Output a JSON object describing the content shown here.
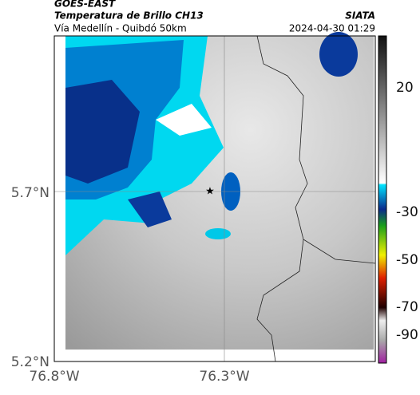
{
  "header": {
    "source": "GOES-EAST",
    "title": "Temperatura de Brillo CH13",
    "subtitle": "Vía Medellín - Quibdó 50km",
    "brand": "SIATA",
    "timestamp": "2024-04-30 01:29"
  },
  "axes": {
    "lat_labels": [
      "5.7°N",
      "5.2°N"
    ],
    "lon_labels": [
      "76.8°W",
      "76.3°W"
    ]
  },
  "colorbar": {
    "ticks": [
      20,
      -30,
      -50,
      -70,
      -90
    ]
  }
}
